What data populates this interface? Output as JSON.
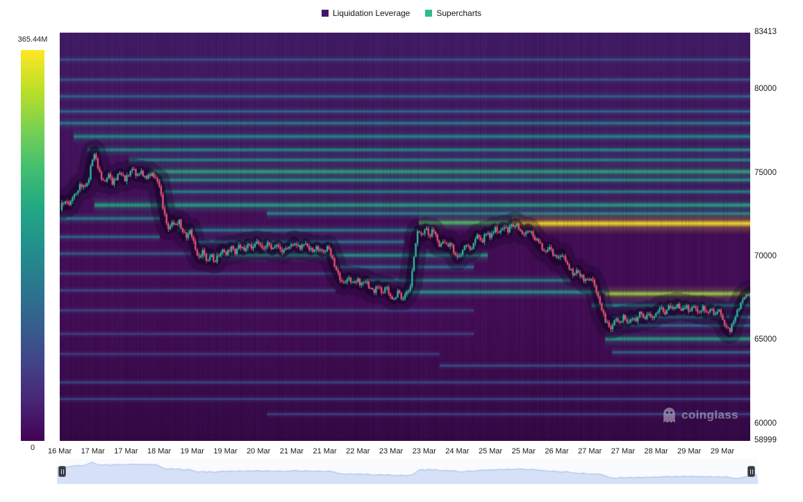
{
  "legend": {
    "items": [
      {
        "label": "Liquidation Leverage",
        "color": "#45136b"
      },
      {
        "label": "Supercharts",
        "color": "#2ebd85"
      }
    ]
  },
  "colorbar": {
    "max_label": "365.44M",
    "min_label": "0",
    "colormap": "viridis"
  },
  "watermark": {
    "text": "coinglass"
  },
  "chart_data": {
    "type": "heatmap",
    "legend": [
      "Liquidation Leverage",
      "Supercharts"
    ],
    "colorbar": {
      "max": "365.44M",
      "min": "0",
      "colormap": "viridis"
    },
    "y_axis": {
      "min": 58999,
      "max": 83413,
      "ticks": [
        83413,
        80000,
        75000,
        70000,
        65000,
        60000,
        58999
      ]
    },
    "x_axis": {
      "labels": [
        "16 Mar",
        "17 Mar",
        "17 Mar",
        "18 Mar",
        "19 Mar",
        "19 Mar",
        "20 Mar",
        "21 Mar",
        "21 Mar",
        "22 Mar",
        "23 Mar",
        "23 Mar",
        "24 Mar",
        "25 Mar",
        "25 Mar",
        "26 Mar",
        "27 Mar",
        "27 Mar",
        "28 Mar",
        "29 Mar",
        "29 Mar"
      ]
    },
    "style": {
      "background": "#410b50",
      "candle_up": "#2ec4a6",
      "candle_down": "#ef5b76",
      "navigator_bg": "#fafbff",
      "navigator_fill": "#d6e1f8",
      "navigator_line": "#adc2ea"
    },
    "bands": [
      [
        81800,
        0,
        1,
        0.3,
        2
      ],
      [
        80600,
        0,
        1,
        0.32,
        2
      ],
      [
        79600,
        0,
        1,
        0.36,
        2.5
      ],
      [
        78700,
        0,
        1,
        0.38,
        2.5
      ],
      [
        78000,
        0,
        1,
        0.45,
        3
      ],
      [
        77200,
        0.02,
        1,
        0.5,
        3.5
      ],
      [
        76400,
        0.04,
        1,
        0.52,
        3
      ],
      [
        75800,
        0.1,
        1,
        0.5,
        3
      ],
      [
        75100,
        0.13,
        1,
        0.62,
        4
      ],
      [
        74600,
        0.14,
        1,
        0.55,
        3
      ],
      [
        73900,
        0.15,
        1,
        0.48,
        3
      ],
      [
        73100,
        0.05,
        1,
        0.6,
        4
      ],
      [
        72600,
        0.3,
        1,
        0.5,
        3
      ],
      [
        72050,
        0.52,
        0.665,
        0.72,
        4
      ],
      [
        72000,
        0.655,
        1,
        1.0,
        5
      ],
      [
        71600,
        0.17,
        0.52,
        0.45,
        3
      ],
      [
        70900,
        0.2,
        0.5,
        0.42,
        3
      ],
      [
        70100,
        0.2,
        0.62,
        0.55,
        3.5
      ],
      [
        69400,
        0.4,
        0.6,
        0.4,
        3
      ],
      [
        68600,
        0.42,
        0.74,
        0.48,
        3
      ],
      [
        67900,
        0.5,
        0.79,
        0.55,
        3.5
      ],
      [
        67800,
        0.79,
        1,
        0.85,
        4
      ],
      [
        67100,
        0.77,
        1,
        0.5,
        3
      ],
      [
        66400,
        0.8,
        1,
        0.45,
        3
      ],
      [
        65900,
        0.8,
        1,
        0.42,
        2.5
      ],
      [
        65100,
        0.79,
        1,
        0.6,
        3.5
      ],
      [
        64300,
        0.8,
        1,
        0.35,
        2.5
      ],
      [
        63500,
        0.55,
        1,
        0.28,
        2
      ],
      [
        62500,
        0,
        1,
        0.25,
        2
      ],
      [
        61500,
        0,
        1,
        0.24,
        2
      ],
      [
        60600,
        0.3,
        1,
        0.22,
        2
      ],
      [
        72300,
        0,
        0.145,
        0.45,
        3
      ],
      [
        71200,
        0,
        0.145,
        0.38,
        2.5
      ],
      [
        70200,
        0,
        0.19,
        0.32,
        2.5
      ],
      [
        69000,
        0,
        0.4,
        0.28,
        2
      ],
      [
        68000,
        0,
        0.4,
        0.26,
        2
      ],
      [
        66800,
        0,
        0.6,
        0.24,
        2
      ],
      [
        65400,
        0,
        0.6,
        0.22,
        2
      ],
      [
        64200,
        0,
        0.55,
        0.2,
        2
      ]
    ],
    "price_series": [
      [
        0.0,
        72900
      ],
      [
        0.006,
        73400
      ],
      [
        0.012,
        73100
      ],
      [
        0.018,
        73600
      ],
      [
        0.024,
        73900
      ],
      [
        0.03,
        74300
      ],
      [
        0.036,
        74100
      ],
      [
        0.042,
        74800
      ],
      [
        0.046,
        75700
      ],
      [
        0.05,
        76300
      ],
      [
        0.054,
        75600
      ],
      [
        0.058,
        74900
      ],
      [
        0.064,
        74500
      ],
      [
        0.07,
        74900
      ],
      [
        0.076,
        74400
      ],
      [
        0.082,
        74800
      ],
      [
        0.088,
        75000
      ],
      [
        0.094,
        74600
      ],
      [
        0.1,
        74900
      ],
      [
        0.106,
        75200
      ],
      [
        0.112,
        74800
      ],
      [
        0.118,
        75100
      ],
      [
        0.124,
        74700
      ],
      [
        0.13,
        75000
      ],
      [
        0.136,
        74800
      ],
      [
        0.142,
        74600
      ],
      [
        0.146,
        73800
      ],
      [
        0.15,
        72800
      ],
      [
        0.154,
        72100
      ],
      [
        0.158,
        71700
      ],
      [
        0.163,
        72200
      ],
      [
        0.168,
        71800
      ],
      [
        0.173,
        72100
      ],
      [
        0.178,
        71500
      ],
      [
        0.183,
        71200
      ],
      [
        0.188,
        71700
      ],
      [
        0.193,
        71000
      ],
      [
        0.198,
        70300
      ],
      [
        0.203,
        69900
      ],
      [
        0.208,
        70400
      ],
      [
        0.213,
        69800
      ],
      [
        0.218,
        70200
      ],
      [
        0.224,
        69700
      ],
      [
        0.23,
        70100
      ],
      [
        0.236,
        70500
      ],
      [
        0.242,
        70200
      ],
      [
        0.248,
        70600
      ],
      [
        0.254,
        70300
      ],
      [
        0.26,
        70700
      ],
      [
        0.266,
        70400
      ],
      [
        0.272,
        70800
      ],
      [
        0.278,
        70500
      ],
      [
        0.285,
        70900
      ],
      [
        0.292,
        70500
      ],
      [
        0.3,
        70800
      ],
      [
        0.308,
        70400
      ],
      [
        0.316,
        70700
      ],
      [
        0.324,
        70300
      ],
      [
        0.332,
        70600
      ],
      [
        0.34,
        70900
      ],
      [
        0.348,
        70500
      ],
      [
        0.356,
        70800
      ],
      [
        0.364,
        70400
      ],
      [
        0.372,
        70600
      ],
      [
        0.38,
        70300
      ],
      [
        0.388,
        70600
      ],
      [
        0.394,
        70000
      ],
      [
        0.4,
        69200
      ],
      [
        0.406,
        68700
      ],
      [
        0.412,
        68400
      ],
      [
        0.418,
        68800
      ],
      [
        0.424,
        68400
      ],
      [
        0.43,
        68700
      ],
      [
        0.436,
        68300
      ],
      [
        0.442,
        68600
      ],
      [
        0.448,
        68100
      ],
      [
        0.454,
        67900
      ],
      [
        0.46,
        68300
      ],
      [
        0.466,
        67900
      ],
      [
        0.472,
        68200
      ],
      [
        0.478,
        67700
      ],
      [
        0.484,
        67500
      ],
      [
        0.49,
        67900
      ],
      [
        0.496,
        67500
      ],
      [
        0.502,
        67800
      ],
      [
        0.508,
        68400
      ],
      [
        0.512,
        69800
      ],
      [
        0.516,
        71200
      ],
      [
        0.52,
        71600
      ],
      [
        0.525,
        71200
      ],
      [
        0.53,
        71700
      ],
      [
        0.535,
        71300
      ],
      [
        0.54,
        71600
      ],
      [
        0.545,
        71100
      ],
      [
        0.55,
        70700
      ],
      [
        0.555,
        71000
      ],
      [
        0.56,
        70600
      ],
      [
        0.565,
        70900
      ],
      [
        0.57,
        70400
      ],
      [
        0.576,
        69900
      ],
      [
        0.582,
        70300
      ],
      [
        0.588,
        70700
      ],
      [
        0.594,
        70400
      ],
      [
        0.6,
        70900
      ],
      [
        0.606,
        71300
      ],
      [
        0.612,
        71000
      ],
      [
        0.618,
        71500
      ],
      [
        0.624,
        71200
      ],
      [
        0.63,
        71700
      ],
      [
        0.636,
        71400
      ],
      [
        0.642,
        71800
      ],
      [
        0.648,
        71500
      ],
      [
        0.654,
        71900
      ],
      [
        0.66,
        72000
      ],
      [
        0.666,
        71700
      ],
      [
        0.672,
        71400
      ],
      [
        0.678,
        71700
      ],
      [
        0.684,
        71300
      ],
      [
        0.69,
        71000
      ],
      [
        0.696,
        70700
      ],
      [
        0.702,
        70400
      ],
      [
        0.708,
        70600
      ],
      [
        0.714,
        70100
      ],
      [
        0.72,
        69800
      ],
      [
        0.726,
        70200
      ],
      [
        0.732,
        69700
      ],
      [
        0.738,
        69300
      ],
      [
        0.744,
        68900
      ],
      [
        0.75,
        69200
      ],
      [
        0.756,
        68800
      ],
      [
        0.762,
        68500
      ],
      [
        0.768,
        68800
      ],
      [
        0.774,
        68400
      ],
      [
        0.78,
        67600
      ],
      [
        0.786,
        66600
      ],
      [
        0.792,
        66000
      ],
      [
        0.798,
        65800
      ],
      [
        0.804,
        66300
      ],
      [
        0.81,
        66000
      ],
      [
        0.816,
        66400
      ],
      [
        0.822,
        66100
      ],
      [
        0.828,
        66500
      ],
      [
        0.834,
        66200
      ],
      [
        0.84,
        66600
      ],
      [
        0.846,
        66300
      ],
      [
        0.852,
        66700
      ],
      [
        0.858,
        66400
      ],
      [
        0.864,
        66800
      ],
      [
        0.87,
        67000
      ],
      [
        0.876,
        66700
      ],
      [
        0.882,
        67100
      ],
      [
        0.888,
        66800
      ],
      [
        0.894,
        67200
      ],
      [
        0.9,
        66900
      ],
      [
        0.906,
        67100
      ],
      [
        0.912,
        66800
      ],
      [
        0.918,
        67000
      ],
      [
        0.924,
        66700
      ],
      [
        0.93,
        67000
      ],
      [
        0.936,
        66600
      ],
      [
        0.942,
        66900
      ],
      [
        0.948,
        66500
      ],
      [
        0.954,
        66800
      ],
      [
        0.96,
        66200
      ],
      [
        0.966,
        65700
      ],
      [
        0.97,
        65500
      ],
      [
        0.974,
        66000
      ],
      [
        0.98,
        66600
      ],
      [
        0.986,
        67200
      ],
      [
        0.992,
        67700
      ],
      [
        0.998,
        67900
      ]
    ]
  }
}
